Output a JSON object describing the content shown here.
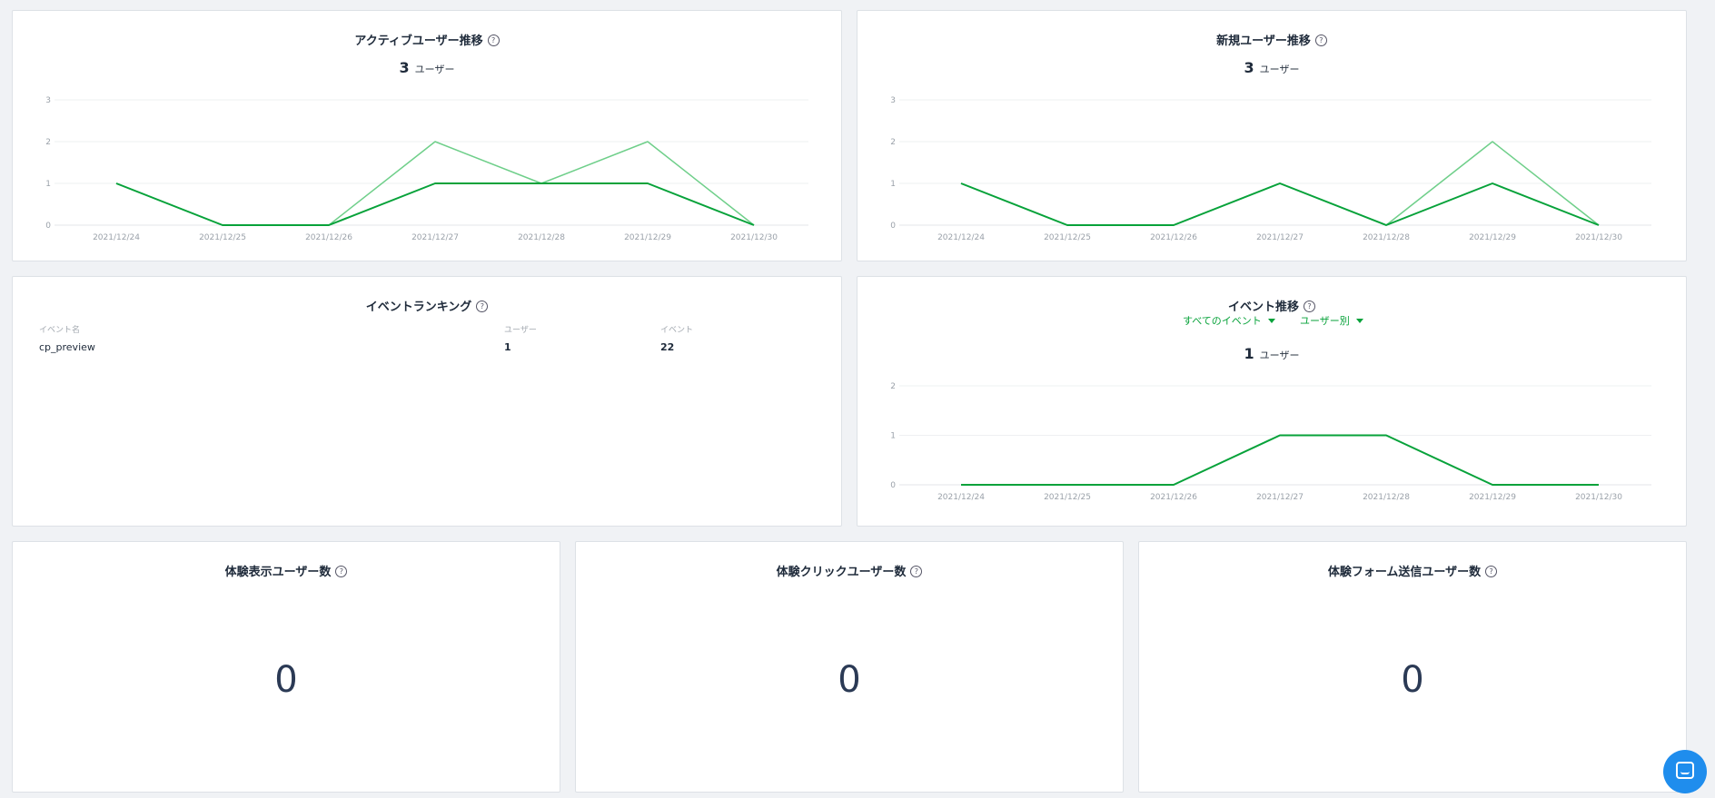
{
  "panels": {
    "active_users": {
      "title": "アクティブユーザー推移",
      "summary_value": "3",
      "summary_unit": "ユーザー"
    },
    "new_users": {
      "title": "新規ユーザー推移",
      "summary_value": "3",
      "summary_unit": "ユーザー"
    },
    "event_ranking": {
      "title": "イベントランキング",
      "columns": [
        "イベント名",
        "ユーザー",
        "イベント"
      ],
      "rows": [
        {
          "event_name": "cp_preview",
          "users": "1",
          "events": "22"
        }
      ]
    },
    "event_trend": {
      "title": "イベント推移",
      "dropdown_event": "すべてのイベント",
      "dropdown_mode": "ユーザー別",
      "summary_value": "1",
      "summary_unit": "ユーザー"
    },
    "experience_view": {
      "title": "体験表示ユーザー数",
      "value": "0"
    },
    "experience_click": {
      "title": "体験クリックユーザー数",
      "value": "0"
    },
    "experience_form": {
      "title": "体験フォーム送信ユーザー数",
      "value": "0"
    }
  },
  "help_icon_glyph": "?",
  "colors": {
    "dark_line": "#07a23a",
    "light_line": "#6fcf8a",
    "accent": "#07a23a",
    "chat_button": "#1f8ded"
  },
  "chart_data": [
    {
      "type": "line",
      "x": [
        "2021/12/24",
        "2021/12/25",
        "2021/12/26",
        "2021/12/27",
        "2021/12/28",
        "2021/12/29",
        "2021/12/30"
      ],
      "yticks": [
        "0",
        "1",
        "2",
        "3"
      ],
      "ylim": [
        0,
        3
      ],
      "grid": true,
      "series": [
        {
          "values": [
            1,
            0,
            0,
            2,
            1,
            2,
            0
          ],
          "color": "#6fcf8a"
        },
        {
          "values": [
            1,
            0,
            0,
            1,
            1,
            1,
            0
          ],
          "color": "#07a23a"
        }
      ]
    },
    {
      "type": "line",
      "x": [
        "2021/12/24",
        "2021/12/25",
        "2021/12/26",
        "2021/12/27",
        "2021/12/28",
        "2021/12/29",
        "2021/12/30"
      ],
      "yticks": [
        "0",
        "1",
        "2",
        "3"
      ],
      "ylim": [
        0,
        3
      ],
      "grid": true,
      "series": [
        {
          "values": [
            1,
            0,
            0,
            1,
            0,
            2,
            0
          ],
          "color": "#6fcf8a"
        },
        {
          "values": [
            1,
            0,
            0,
            1,
            0,
            1,
            0
          ],
          "color": "#07a23a"
        }
      ]
    },
    {
      "type": "line",
      "x": [
        "2021/12/24",
        "2021/12/25",
        "2021/12/26",
        "2021/12/27",
        "2021/12/28",
        "2021/12/29",
        "2021/12/30"
      ],
      "yticks": [
        "0",
        "1",
        "2"
      ],
      "ylim": [
        0,
        2
      ],
      "grid": true,
      "series": [
        {
          "values": [
            0,
            0,
            0,
            1,
            1,
            0,
            0
          ],
          "color": "#07a23a"
        }
      ]
    }
  ]
}
